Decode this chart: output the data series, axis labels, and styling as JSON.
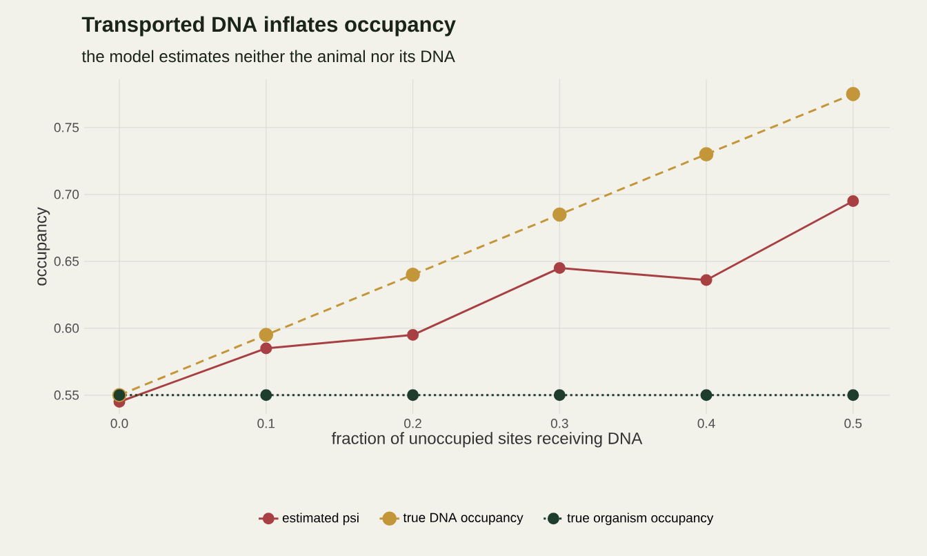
{
  "chart_data": {
    "type": "line",
    "title": "Transported DNA inflates occupancy",
    "subtitle": "the model estimates neither the animal nor its DNA",
    "xlabel": "fraction of unoccupied sites receiving DNA",
    "ylabel": "occupancy",
    "x": [
      0.0,
      0.1,
      0.2,
      0.3,
      0.4,
      0.5
    ],
    "series": [
      {
        "name": "estimated psi",
        "color": "#a84043",
        "line_style": "solid",
        "values": [
          0.545,
          0.585,
          0.595,
          0.645,
          0.636,
          0.695
        ]
      },
      {
        "name": "true DNA occupancy",
        "color": "#c4963a",
        "line_style": "dashed",
        "values": [
          0.55,
          0.595,
          0.64,
          0.685,
          0.73,
          0.775
        ]
      },
      {
        "name": "true organism occupancy",
        "color": "#1e3d2c",
        "line_style": "dotted",
        "values": [
          0.55,
          0.55,
          0.55,
          0.55,
          0.55,
          0.55
        ]
      }
    ],
    "xlim": [
      -0.024,
      0.525
    ],
    "ylim": [
      0.536,
      0.786
    ],
    "xticks": [
      {
        "value": 0.0,
        "label": "0.0"
      },
      {
        "value": 0.1,
        "label": "0.1"
      },
      {
        "value": 0.2,
        "label": "0.2"
      },
      {
        "value": 0.3,
        "label": "0.3"
      },
      {
        "value": 0.4,
        "label": "0.4"
      },
      {
        "value": 0.5,
        "label": "0.5"
      }
    ],
    "yticks": [
      {
        "value": 0.55,
        "label": "0.55"
      },
      {
        "value": 0.6,
        "label": "0.60"
      },
      {
        "value": 0.65,
        "label": "0.65"
      },
      {
        "value": 0.7,
        "label": "0.70"
      },
      {
        "value": 0.75,
        "label": "0.75"
      }
    ],
    "grid": true,
    "legend": "bottom",
    "marker": "circle"
  }
}
